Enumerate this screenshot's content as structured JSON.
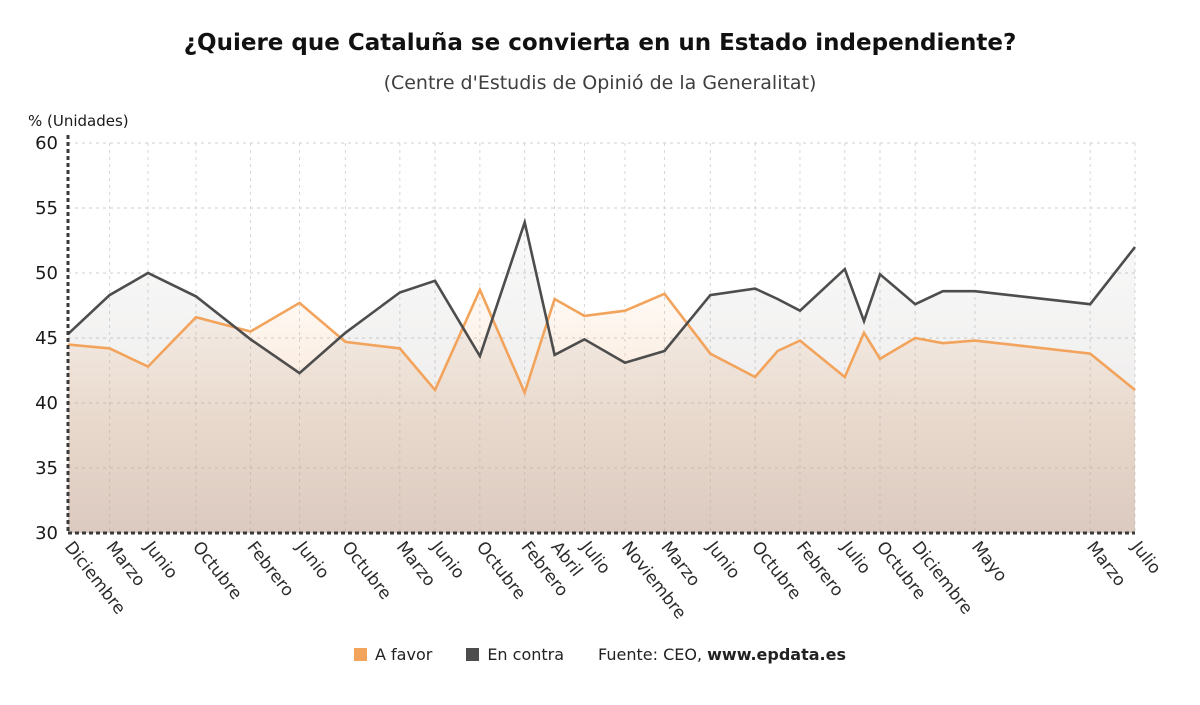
{
  "header": {
    "title": "¿Quiere que Cataluña se convierta en un Estado independiente?",
    "subtitle": "(Centre d'Estudis de Opinió de la Generalitat)"
  },
  "chart_data": {
    "type": "line",
    "title": "¿Quiere que Cataluña se convierta en un Estado independiente?",
    "subtitle": "(Centre d'Estudis de Opinió de la Generalitat)",
    "ylabel": "% (Unidades)",
    "ylim": [
      30,
      60
    ],
    "yticks": [
      60,
      55,
      50,
      45,
      40,
      35,
      30
    ],
    "grid": true,
    "legend_position": "bottom",
    "series": [
      {
        "name": "A favor",
        "key": "a_favor",
        "color": "#F2A35C",
        "fill_top": "rgba(242,163,92,0.05)",
        "fill_bottom": "rgba(224,186,165,0.50)"
      },
      {
        "name": "En contra",
        "key": "en_contra",
        "color": "#4D4D4D",
        "fill_top": "rgba(130,122,118,0.04)",
        "fill_bottom": "rgba(140,130,125,0.20)"
      }
    ],
    "points": [
      {
        "x": 0.0,
        "label": "Diciembre",
        "a_favor": 44.5,
        "en_contra": 45.3
      },
      {
        "x": 0.039,
        "label": "Marzo",
        "a_favor": 44.2,
        "en_contra": 48.3
      },
      {
        "x": 0.075,
        "label": "Junio",
        "a_favor": 42.8,
        "en_contra": 50.0
      },
      {
        "x": 0.12,
        "label": "Octubre",
        "a_favor": 46.6,
        "en_contra": 48.2
      },
      {
        "x": 0.171,
        "label": "Febrero",
        "a_favor": 45.5,
        "en_contra": 44.9
      },
      {
        "x": 0.217,
        "label": "Junio",
        "a_favor": 47.7,
        "en_contra": 42.3
      },
      {
        "x": 0.26,
        "label": "Octubre",
        "a_favor": 44.7,
        "en_contra": 45.4
      },
      {
        "x": 0.311,
        "label": "Marzo",
        "a_favor": 44.2,
        "en_contra": 48.5
      },
      {
        "x": 0.344,
        "label": "Junio",
        "a_favor": 41.0,
        "en_contra": 49.4
      },
      {
        "x": 0.386,
        "label": "Octubre",
        "a_favor": 48.7,
        "en_contra": 43.6
      },
      {
        "x": 0.428,
        "label": "Febrero",
        "a_favor": 40.8,
        "en_contra": 53.9
      },
      {
        "x": 0.456,
        "label": "Abril",
        "a_favor": 48.0,
        "en_contra": 43.7
      },
      {
        "x": 0.484,
        "label": "Julio",
        "a_favor": 46.7,
        "en_contra": 44.9
      },
      {
        "x": 0.522,
        "label": "Noviembre",
        "a_favor": 47.1,
        "en_contra": 43.1
      },
      {
        "x": 0.559,
        "label": "Marzo",
        "a_favor": 48.4,
        "en_contra": 44.0
      },
      {
        "x": 0.602,
        "label": "Junio",
        "a_favor": 43.8,
        "en_contra": 48.3
      },
      {
        "x": 0.644,
        "label": "Octubre",
        "a_favor": 42.0,
        "en_contra": 48.8
      },
      {
        "x": 0.665,
        "label": "",
        "a_favor": 44.0,
        "en_contra": 48.0
      },
      {
        "x": 0.686,
        "label": "Febrero",
        "a_favor": 44.8,
        "en_contra": 47.1
      },
      {
        "x": 0.728,
        "label": "Julio",
        "a_favor": 42.0,
        "en_contra": 50.3
      },
      {
        "x": 0.746,
        "label": "",
        "a_favor": 45.4,
        "en_contra": 46.3
      },
      {
        "x": 0.761,
        "label": "Octubre",
        "a_favor": 43.4,
        "en_contra": 49.9
      },
      {
        "x": 0.794,
        "label": "Diciembre",
        "a_favor": 45.0,
        "en_contra": 47.6
      },
      {
        "x": 0.82,
        "label": "",
        "a_favor": 44.6,
        "en_contra": 48.6
      },
      {
        "x": 0.85,
        "label": "Mayo",
        "a_favor": 44.8,
        "en_contra": 48.6
      },
      {
        "x": 0.958,
        "label": "Marzo",
        "a_favor": 43.8,
        "en_contra": 47.6
      },
      {
        "x": 1.0,
        "label": "Julio",
        "a_favor": 41.0,
        "en_contra": 52.0
      }
    ]
  },
  "legend": {
    "items": [
      {
        "label": "A favor",
        "color": "#F2A35C"
      },
      {
        "label": "En contra",
        "color": "#4D4D4D"
      }
    ],
    "source_prefix": "Fuente: CEO, ",
    "source_link": "www.epdata.es"
  }
}
